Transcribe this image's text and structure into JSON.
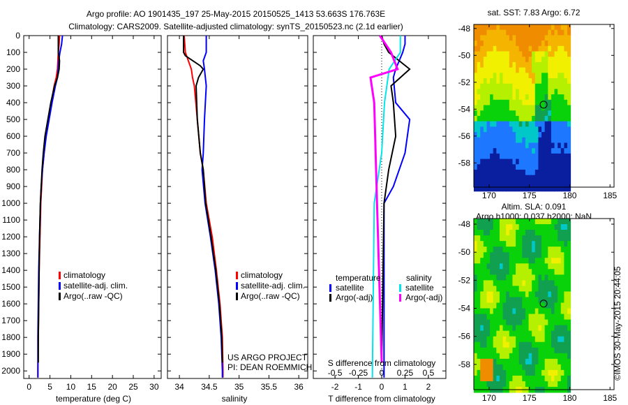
{
  "title_line1": "Argo profile: AO 1901435_197 25-May-2015 20150525_1413 53.663S 176.763E",
  "title_line2": "Climatology: CARS2009. Satellite-adjusted climatology: synTS_20150523.nc (2.1d earlier)",
  "credit": "©IMOS 30-May-2015 20:44:05",
  "project": "US ARGO PROJECT",
  "pi": "PI: DEAN ROEMMICH",
  "colors": {
    "clim": "#ff0000",
    "sat": "#0000ff",
    "argo": "#000000",
    "ssat": "#00e5ee",
    "sargo": "#ff00ff"
  },
  "chart_data": [
    {
      "type": "line",
      "name": "temperature",
      "xlabel": "temperature (deg C)",
      "xlim": [
        -1.3,
        31.7
      ],
      "ylim": [
        2045,
        0
      ],
      "xticks": [
        0,
        5,
        10,
        15,
        20,
        25,
        30
      ],
      "yticks": [
        0,
        100,
        200,
        300,
        400,
        500,
        600,
        700,
        800,
        900,
        1000,
        1100,
        1200,
        1300,
        1400,
        1500,
        1600,
        1700,
        1800,
        1900,
        2000
      ],
      "legend": [
        "climatology",
        "satellite-adj. clim.",
        "Argo(..raw -QC)"
      ],
      "series": [
        {
          "name": "climatology",
          "color": "clim",
          "depth": [
            0,
            50,
            100,
            150,
            200,
            250,
            300,
            400,
            500,
            600,
            700,
            800,
            900,
            1000,
            1200,
            1400,
            1600,
            1800,
            2000,
            2040
          ],
          "values": [
            7.3,
            7.2,
            7.0,
            6.9,
            6.8,
            6.5,
            6.0,
            5.3,
            4.6,
            4.0,
            3.6,
            3.2,
            3.0,
            2.8,
            2.6,
            2.4,
            2.3,
            2.2,
            2.1,
            2.1
          ]
        },
        {
          "name": "satellite-adj. clim.",
          "color": "sat",
          "depth": [
            0,
            50,
            100,
            150,
            200,
            250,
            300,
            400,
            500,
            600,
            700,
            800,
            900,
            1000,
            1200,
            1400,
            1600,
            1800,
            2000,
            2040
          ],
          "values": [
            8.0,
            7.8,
            7.4,
            7.1,
            7.0,
            6.8,
            6.3,
            5.5,
            4.8,
            4.1,
            3.6,
            3.2,
            2.9,
            2.7,
            2.5,
            2.3,
            2.2,
            2.1,
            2.1,
            2.1
          ]
        },
        {
          "name": "Argo(..raw -QC)",
          "color": "argo",
          "depth": [
            0,
            50,
            100,
            150,
            200,
            250,
            300,
            400,
            500,
            600,
            700,
            800,
            900,
            1000,
            1200,
            1400,
            1600,
            1800,
            1950
          ],
          "values": [
            7.0,
            7.0,
            7.0,
            7.3,
            7.2,
            6.8,
            6.1,
            5.2,
            4.5,
            3.8,
            3.4,
            3.1,
            2.9,
            2.7,
            2.5,
            2.4,
            2.3,
            2.2,
            2.2
          ]
        }
      ]
    },
    {
      "type": "line",
      "name": "salinity",
      "xlabel": "salinity",
      "xlim": [
        33.8,
        36.15
      ],
      "ylim": [
        2045,
        0
      ],
      "xticks": [
        34,
        34.5,
        35,
        35.5,
        36
      ],
      "legend": [
        "climatology",
        "satellite-adj. clim.",
        "Argo(..raw -QC)"
      ],
      "series": [
        {
          "name": "climatology",
          "color": "clim",
          "depth": [
            0,
            100,
            150,
            200,
            250,
            300,
            500,
            700,
            800,
            1000,
            1200,
            1400,
            1600,
            1800,
            2000,
            2040
          ],
          "values": [
            34.08,
            34.1,
            34.15,
            34.2,
            34.22,
            34.25,
            34.3,
            34.35,
            34.4,
            34.45,
            34.55,
            34.62,
            34.68,
            34.72,
            34.73,
            34.73
          ]
        },
        {
          "name": "satellite-adj. clim.",
          "color": "sat",
          "depth": [
            0,
            100,
            150,
            200,
            300,
            500,
            700,
            800,
            1000,
            1200,
            1400,
            1600,
            1800,
            2000,
            2040
          ],
          "values": [
            34.45,
            34.45,
            34.4,
            34.42,
            34.45,
            34.42,
            34.4,
            34.38,
            34.43,
            34.52,
            34.6,
            34.66,
            34.7,
            34.72,
            34.72
          ]
        },
        {
          "name": "Argo(..raw -QC)",
          "color": "argo",
          "depth": [
            0,
            100,
            120,
            180,
            200,
            250,
            300,
            500,
            700,
            800,
            1000,
            1200,
            1400,
            1600,
            1800,
            1950
          ],
          "values": [
            34.07,
            34.07,
            34.1,
            34.35,
            34.4,
            34.32,
            34.28,
            34.3,
            34.35,
            34.4,
            34.44,
            34.53,
            34.61,
            34.67,
            34.71,
            34.72
          ]
        }
      ]
    },
    {
      "type": "line",
      "name": "difference",
      "xlabel": "T difference from climatology",
      "s_label": "S difference from climatology",
      "xlim": [
        -2.93,
        2.75
      ],
      "ylim": [
        2045,
        0
      ],
      "xticks": [
        -2,
        -1,
        0,
        1,
        2
      ],
      "s_ticks": [
        "-0.5",
        "-0.25",
        "0",
        "0.25",
        "0.5"
      ],
      "s_tick_values": [
        -0.5,
        -0.25,
        0,
        0.25,
        0.5
      ],
      "s_scale": 4,
      "legend_headers": [
        "temperature",
        "salinity"
      ],
      "legend": [
        "satellite",
        "Argo(-adj)",
        "satellite",
        "Argo(-adj)"
      ],
      "series": [
        {
          "name": "T satellite",
          "color": "sat",
          "scale": 1,
          "depth": [
            0,
            50,
            100,
            200,
            250,
            400,
            500,
            700,
            900,
            1000,
            2040
          ],
          "values": [
            1.0,
            1.0,
            0.9,
            0.6,
            0.5,
            0.6,
            1.2,
            1.0,
            0.5,
            0.1,
            0.1
          ]
        },
        {
          "name": "T Argo(-adj)",
          "color": "argo",
          "scale": 1,
          "depth": [
            0,
            50,
            100,
            200,
            300,
            400,
            600,
            800,
            1000,
            1950
          ],
          "values": [
            0,
            0.1,
            0.3,
            1.2,
            0.4,
            0.5,
            0.6,
            0.3,
            0.1,
            0
          ]
        },
        {
          "name": "S satellite",
          "color": "ssat",
          "scale": 4,
          "depth": [
            0,
            100,
            200,
            400,
            700,
            1000,
            2040
          ],
          "values": [
            0.2,
            0.2,
            0.08,
            0.03,
            0,
            -0.08,
            -0.1
          ]
        },
        {
          "name": "S Argo(-adj)",
          "color": "sargo",
          "scale": 4,
          "depth": [
            0,
            100,
            200,
            250,
            400,
            1000,
            1950
          ],
          "values": [
            -0.02,
            0.1,
            0.17,
            -0.12,
            -0.08,
            -0.05,
            0
          ]
        }
      ]
    }
  ],
  "maps": [
    {
      "title1": "sat. SST: 7.83 Argo: 6.72",
      "kind": "sst",
      "lon_ticks": [
        "170",
        "175",
        "180",
        "185"
      ],
      "lat_ticks": [
        "-48",
        "-50",
        "-52",
        "-54",
        "-56",
        "-58"
      ],
      "float": {
        "lon": 176.763,
        "lat": -53.663
      }
    },
    {
      "title1": "Altim. SLA: 0.091",
      "title2": "Argo h1000: 0.037 h2000: NaN",
      "kind": "sla",
      "lon_ticks": [
        "170",
        "175",
        "180",
        "185"
      ],
      "lat_ticks": [
        "-48",
        "-50",
        "-52",
        "-54",
        "-56",
        "-58"
      ],
      "float": {
        "lon": 176.763,
        "lat": -53.663
      }
    }
  ]
}
